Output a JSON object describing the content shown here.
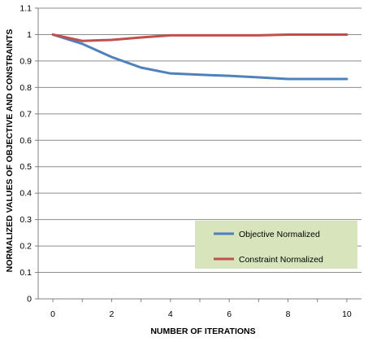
{
  "chart_data": {
    "type": "line",
    "title": "",
    "xlabel": "NUMBER OF ITERATIONS",
    "ylabel": "NORMALIZED VALUES OF OBJECTIVE AND CONSTRAINTS",
    "xlim": [
      -0.5,
      10.5
    ],
    "ylim": [
      0,
      1.1
    ],
    "xticks": [
      0,
      2,
      4,
      6,
      8,
      10
    ],
    "yticks": [
      0,
      0.1,
      0.2,
      0.3,
      0.4,
      0.5,
      0.6,
      0.7,
      0.8,
      0.9,
      1,
      1.1
    ],
    "grid": "horizontal",
    "legend_position": "bottom-right",
    "x": [
      0,
      1,
      2,
      3,
      4,
      5,
      6,
      7,
      8,
      9,
      10
    ],
    "series": [
      {
        "name": "Objective Normalized",
        "color": "#4F81BD",
        "values": [
          1.0,
          0.965,
          0.915,
          0.875,
          0.853,
          0.848,
          0.844,
          0.838,
          0.832,
          0.832,
          0.832
        ]
      },
      {
        "name": "Constraint Normalized",
        "color": "#C0504D",
        "values": [
          1.0,
          0.976,
          0.98,
          0.989,
          0.997,
          0.997,
          0.997,
          0.997,
          1.0,
          1.0,
          1.0
        ]
      }
    ],
    "legend_background": "#D8E4BC"
  }
}
